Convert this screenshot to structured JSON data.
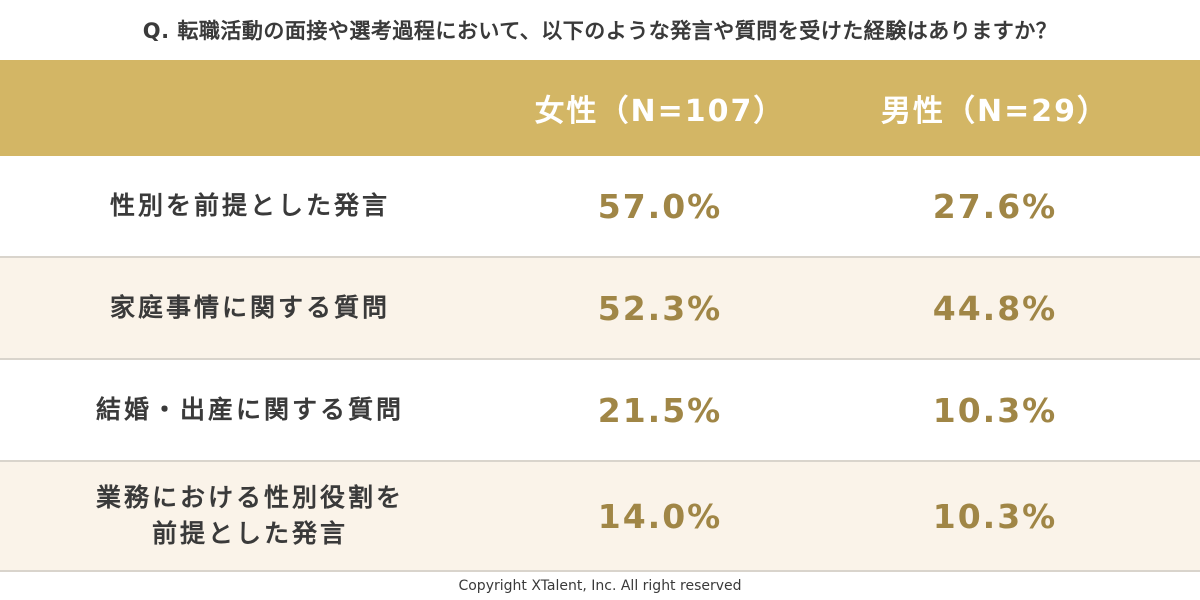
{
  "question": "Q. 転職活動の面接や選考過程において、以下のような発言や質問を受けた経験はありますか？",
  "copyright": "Copyright XTalent, Inc. All right reserved",
  "colors": {
    "header_bg": "#d3b665",
    "value_text": "#a08646",
    "alt_row_bg": "#faf3e9"
  },
  "chart_data": {
    "type": "table",
    "columns": [
      "女性（N=107）",
      "男性（N=29）"
    ],
    "rows": [
      {
        "label": "性別を前提とした発言",
        "values": [
          "57.0%",
          "27.6%"
        ]
      },
      {
        "label": "家庭事情に関する質問",
        "values": [
          "52.3%",
          "44.8%"
        ]
      },
      {
        "label": "結婚・出産に関する質問",
        "values": [
          "21.5%",
          "10.3%"
        ]
      },
      {
        "label": "業務における性別役割を\n前提とした発言",
        "values": [
          "14.0%",
          "10.3%"
        ]
      }
    ]
  }
}
